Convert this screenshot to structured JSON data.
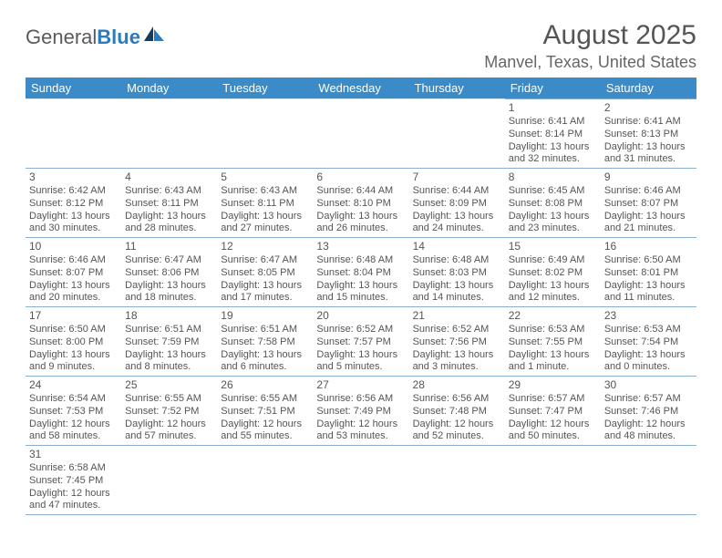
{
  "logo": {
    "text_gray": "General",
    "text_blue": "Blue"
  },
  "title": "August 2025",
  "location": "Manvel, Texas, United States",
  "colors": {
    "header_bg": "#3b8bc9",
    "header_text": "#ffffff",
    "cell_border": "#8aaed0",
    "body_text": "#555555",
    "logo_blue": "#2b7bbf",
    "logo_dark": "#1a3a5a"
  },
  "day_headers": [
    "Sunday",
    "Monday",
    "Tuesday",
    "Wednesday",
    "Thursday",
    "Friday",
    "Saturday"
  ],
  "weeks": [
    [
      null,
      null,
      null,
      null,
      null,
      {
        "d": "1",
        "sr": "Sunrise: 6:41 AM",
        "ss": "Sunset: 8:14 PM",
        "dl": "Daylight: 13 hours and 32 minutes."
      },
      {
        "d": "2",
        "sr": "Sunrise: 6:41 AM",
        "ss": "Sunset: 8:13 PM",
        "dl": "Daylight: 13 hours and 31 minutes."
      }
    ],
    [
      {
        "d": "3",
        "sr": "Sunrise: 6:42 AM",
        "ss": "Sunset: 8:12 PM",
        "dl": "Daylight: 13 hours and 30 minutes."
      },
      {
        "d": "4",
        "sr": "Sunrise: 6:43 AM",
        "ss": "Sunset: 8:11 PM",
        "dl": "Daylight: 13 hours and 28 minutes."
      },
      {
        "d": "5",
        "sr": "Sunrise: 6:43 AM",
        "ss": "Sunset: 8:11 PM",
        "dl": "Daylight: 13 hours and 27 minutes."
      },
      {
        "d": "6",
        "sr": "Sunrise: 6:44 AM",
        "ss": "Sunset: 8:10 PM",
        "dl": "Daylight: 13 hours and 26 minutes."
      },
      {
        "d": "7",
        "sr": "Sunrise: 6:44 AM",
        "ss": "Sunset: 8:09 PM",
        "dl": "Daylight: 13 hours and 24 minutes."
      },
      {
        "d": "8",
        "sr": "Sunrise: 6:45 AM",
        "ss": "Sunset: 8:08 PM",
        "dl": "Daylight: 13 hours and 23 minutes."
      },
      {
        "d": "9",
        "sr": "Sunrise: 6:46 AM",
        "ss": "Sunset: 8:07 PM",
        "dl": "Daylight: 13 hours and 21 minutes."
      }
    ],
    [
      {
        "d": "10",
        "sr": "Sunrise: 6:46 AM",
        "ss": "Sunset: 8:07 PM",
        "dl": "Daylight: 13 hours and 20 minutes."
      },
      {
        "d": "11",
        "sr": "Sunrise: 6:47 AM",
        "ss": "Sunset: 8:06 PM",
        "dl": "Daylight: 13 hours and 18 minutes."
      },
      {
        "d": "12",
        "sr": "Sunrise: 6:47 AM",
        "ss": "Sunset: 8:05 PM",
        "dl": "Daylight: 13 hours and 17 minutes."
      },
      {
        "d": "13",
        "sr": "Sunrise: 6:48 AM",
        "ss": "Sunset: 8:04 PM",
        "dl": "Daylight: 13 hours and 15 minutes."
      },
      {
        "d": "14",
        "sr": "Sunrise: 6:48 AM",
        "ss": "Sunset: 8:03 PM",
        "dl": "Daylight: 13 hours and 14 minutes."
      },
      {
        "d": "15",
        "sr": "Sunrise: 6:49 AM",
        "ss": "Sunset: 8:02 PM",
        "dl": "Daylight: 13 hours and 12 minutes."
      },
      {
        "d": "16",
        "sr": "Sunrise: 6:50 AM",
        "ss": "Sunset: 8:01 PM",
        "dl": "Daylight: 13 hours and 11 minutes."
      }
    ],
    [
      {
        "d": "17",
        "sr": "Sunrise: 6:50 AM",
        "ss": "Sunset: 8:00 PM",
        "dl": "Daylight: 13 hours and 9 minutes."
      },
      {
        "d": "18",
        "sr": "Sunrise: 6:51 AM",
        "ss": "Sunset: 7:59 PM",
        "dl": "Daylight: 13 hours and 8 minutes."
      },
      {
        "d": "19",
        "sr": "Sunrise: 6:51 AM",
        "ss": "Sunset: 7:58 PM",
        "dl": "Daylight: 13 hours and 6 minutes."
      },
      {
        "d": "20",
        "sr": "Sunrise: 6:52 AM",
        "ss": "Sunset: 7:57 PM",
        "dl": "Daylight: 13 hours and 5 minutes."
      },
      {
        "d": "21",
        "sr": "Sunrise: 6:52 AM",
        "ss": "Sunset: 7:56 PM",
        "dl": "Daylight: 13 hours and 3 minutes."
      },
      {
        "d": "22",
        "sr": "Sunrise: 6:53 AM",
        "ss": "Sunset: 7:55 PM",
        "dl": "Daylight: 13 hours and 1 minute."
      },
      {
        "d": "23",
        "sr": "Sunrise: 6:53 AM",
        "ss": "Sunset: 7:54 PM",
        "dl": "Daylight: 13 hours and 0 minutes."
      }
    ],
    [
      {
        "d": "24",
        "sr": "Sunrise: 6:54 AM",
        "ss": "Sunset: 7:53 PM",
        "dl": "Daylight: 12 hours and 58 minutes."
      },
      {
        "d": "25",
        "sr": "Sunrise: 6:55 AM",
        "ss": "Sunset: 7:52 PM",
        "dl": "Daylight: 12 hours and 57 minutes."
      },
      {
        "d": "26",
        "sr": "Sunrise: 6:55 AM",
        "ss": "Sunset: 7:51 PM",
        "dl": "Daylight: 12 hours and 55 minutes."
      },
      {
        "d": "27",
        "sr": "Sunrise: 6:56 AM",
        "ss": "Sunset: 7:49 PM",
        "dl": "Daylight: 12 hours and 53 minutes."
      },
      {
        "d": "28",
        "sr": "Sunrise: 6:56 AM",
        "ss": "Sunset: 7:48 PM",
        "dl": "Daylight: 12 hours and 52 minutes."
      },
      {
        "d": "29",
        "sr": "Sunrise: 6:57 AM",
        "ss": "Sunset: 7:47 PM",
        "dl": "Daylight: 12 hours and 50 minutes."
      },
      {
        "d": "30",
        "sr": "Sunrise: 6:57 AM",
        "ss": "Sunset: 7:46 PM",
        "dl": "Daylight: 12 hours and 48 minutes."
      }
    ],
    [
      {
        "d": "31",
        "sr": "Sunrise: 6:58 AM",
        "ss": "Sunset: 7:45 PM",
        "dl": "Daylight: 12 hours and 47 minutes."
      },
      null,
      null,
      null,
      null,
      null,
      null
    ]
  ]
}
